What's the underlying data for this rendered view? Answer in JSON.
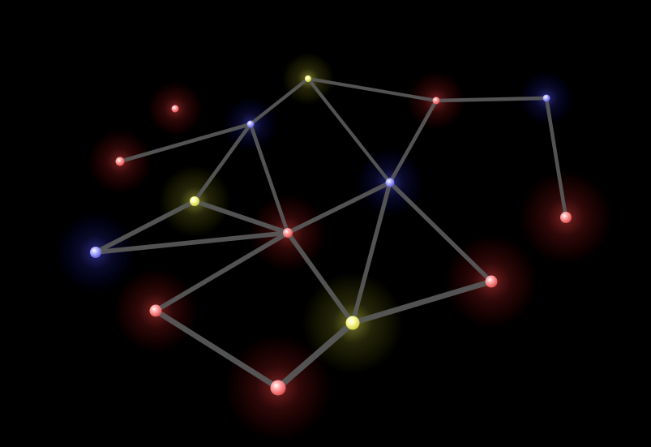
{
  "game": {
    "type": "node-graph",
    "background_color": "#000000",
    "edge_color": "#5a5a5a",
    "node_colors": {
      "red": "#ff8080",
      "blue": "#9a9aff",
      "yellow": "#ffff88"
    },
    "nodes": [
      {
        "id": "n1",
        "color": "red"
      },
      {
        "id": "n2",
        "color": "red"
      },
      {
        "id": "n3",
        "color": "blue"
      },
      {
        "id": "n4",
        "color": "yellow"
      },
      {
        "id": "n5",
        "color": "red"
      },
      {
        "id": "n6",
        "color": "blue"
      },
      {
        "id": "n7",
        "color": "yellow"
      },
      {
        "id": "n8",
        "color": "blue"
      },
      {
        "id": "n9",
        "color": "red"
      },
      {
        "id": "n10",
        "color": "red"
      },
      {
        "id": "n11",
        "color": "blue"
      },
      {
        "id": "n12",
        "color": "red"
      },
      {
        "id": "n13",
        "color": "yellow"
      },
      {
        "id": "n14",
        "color": "red"
      }
    ],
    "edges": [
      [
        "n2",
        "n3"
      ],
      [
        "n3",
        "n4"
      ],
      [
        "n4",
        "n5"
      ],
      [
        "n5",
        "n6"
      ],
      [
        "n6",
        "n10"
      ],
      [
        "n3",
        "n7"
      ],
      [
        "n3",
        "n9"
      ],
      [
        "n4",
        "n11"
      ],
      [
        "n5",
        "n11"
      ],
      [
        "n7",
        "n8"
      ],
      [
        "n7",
        "n9"
      ],
      [
        "n8",
        "n9"
      ],
      [
        "n9",
        "n11"
      ],
      [
        "n9",
        "n12"
      ],
      [
        "n9",
        "n13"
      ],
      [
        "n11",
        "n13"
      ],
      [
        "n11",
        "n14"
      ],
      [
        "n13",
        "n14"
      ],
      [
        "n12",
        "n1"
      ],
      [
        "n1",
        "n13"
      ]
    ]
  }
}
